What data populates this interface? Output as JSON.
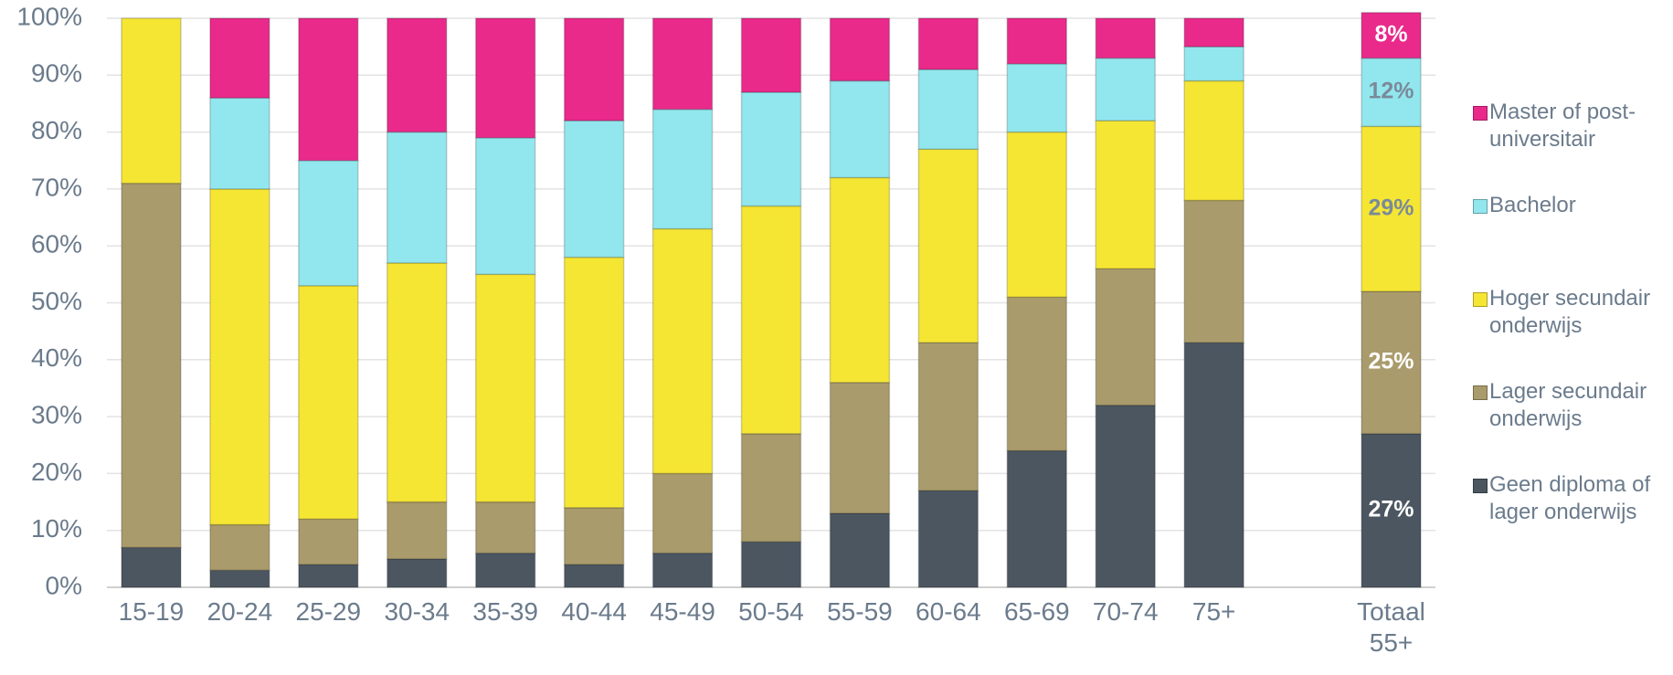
{
  "chart_data": {
    "type": "stacked_bar",
    "categories": [
      "15-19",
      "20-24",
      "25-29",
      "30-34",
      "35-39",
      "40-44",
      "45-49",
      "50-54",
      "55-59",
      "60-64",
      "65-69",
      "70-74",
      "75+",
      null,
      "Totaal 55+"
    ],
    "series": [
      {
        "name": "Geen diploma of lager onderwijs",
        "color": "#4b5661",
        "values": [
          7,
          3,
          4,
          5,
          6,
          4,
          6,
          8,
          13,
          17,
          24,
          32,
          43,
          null,
          27
        ],
        "value_labels": [
          null,
          null,
          null,
          null,
          null,
          null,
          null,
          null,
          null,
          null,
          null,
          null,
          null,
          null,
          "27%"
        ]
      },
      {
        "name": "Lager secundair onderwijs",
        "color": "#a99b6b",
        "values": [
          64,
          8,
          8,
          10,
          9,
          10,
          14,
          19,
          23,
          26,
          27,
          24,
          25,
          null,
          25
        ],
        "value_labels": [
          null,
          null,
          null,
          null,
          null,
          null,
          null,
          null,
          null,
          null,
          null,
          null,
          null,
          null,
          "25%"
        ]
      },
      {
        "name": "Hoger secundair onderwijs",
        "color": "#f6e634",
        "values": [
          29,
          59,
          41,
          42,
          40,
          44,
          43,
          40,
          36,
          34,
          29,
          26,
          21,
          null,
          29
        ],
        "value_labels": [
          null,
          null,
          null,
          null,
          null,
          null,
          null,
          null,
          null,
          null,
          null,
          null,
          null,
          null,
          "29%"
        ]
      },
      {
        "name": "Bachelor",
        "color": "#92e7ee",
        "values": [
          0,
          16,
          22,
          23,
          24,
          24,
          21,
          20,
          17,
          14,
          12,
          11,
          6,
          null,
          12
        ],
        "value_labels": [
          null,
          null,
          null,
          null,
          null,
          null,
          null,
          null,
          null,
          null,
          null,
          null,
          null,
          null,
          "12%"
        ]
      },
      {
        "name": "Master of post-universitair",
        "color": "#e92a8b",
        "values": [
          0,
          14,
          25,
          20,
          21,
          18,
          16,
          13,
          11,
          9,
          8,
          7,
          5,
          null,
          8
        ],
        "value_labels": [
          null,
          null,
          null,
          null,
          null,
          null,
          null,
          null,
          null,
          null,
          null,
          null,
          null,
          null,
          "8%"
        ]
      }
    ],
    "ylim": [
      0,
      100
    ],
    "yticks": [
      {
        "value": 0,
        "label": "0%"
      },
      {
        "value": 10,
        "label": "10%"
      },
      {
        "value": 20,
        "label": "20%"
      },
      {
        "value": 30,
        "label": "30%"
      },
      {
        "value": 40,
        "label": "40%"
      },
      {
        "value": 50,
        "label": "50%"
      },
      {
        "value": 60,
        "label": "60%"
      },
      {
        "value": 70,
        "label": "70%"
      },
      {
        "value": 80,
        "label": "80%"
      },
      {
        "value": 90,
        "label": "90%"
      },
      {
        "value": 100,
        "label": "100%"
      }
    ],
    "grid": true,
    "legend": "right"
  }
}
